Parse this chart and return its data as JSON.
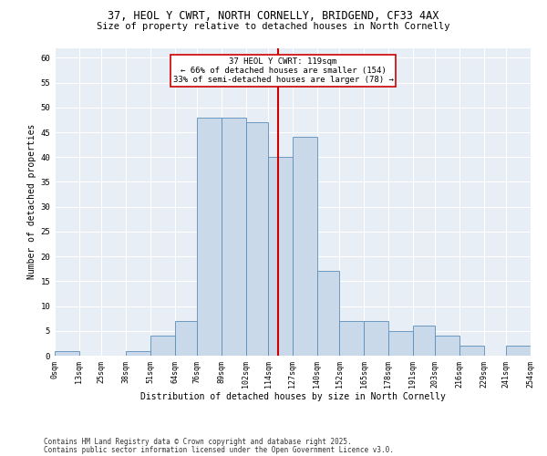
{
  "title1": "37, HEOL Y CWRT, NORTH CORNELLY, BRIDGEND, CF33 4AX",
  "title2": "Size of property relative to detached houses in North Cornelly",
  "xlabel": "Distribution of detached houses by size in North Cornelly",
  "ylabel": "Number of detached properties",
  "footnote1": "Contains HM Land Registry data © Crown copyright and database right 2025.",
  "footnote2": "Contains public sector information licensed under the Open Government Licence v3.0.",
  "property_size": 119,
  "property_label": "37 HEOL Y CWRT: 119sqm",
  "annotation_line1": "← 66% of detached houses are smaller (154)",
  "annotation_line2": "33% of semi-detached houses are larger (78) →",
  "bin_edges": [
    0,
    13,
    25,
    38,
    51,
    64,
    76,
    89,
    102,
    114,
    127,
    140,
    152,
    165,
    178,
    191,
    203,
    216,
    229,
    241,
    254
  ],
  "bar_heights": [
    1,
    0,
    0,
    1,
    4,
    7,
    48,
    48,
    47,
    40,
    44,
    17,
    7,
    7,
    5,
    6,
    4,
    2,
    0,
    2
  ],
  "bar_color": "#c9d9ea",
  "bar_edge_color": "#5b8db8",
  "vline_color": "#cc0000",
  "vline_x": 119,
  "annotation_box_color": "#cc0000",
  "background_color": "#e8eef5",
  "ylim": [
    0,
    62
  ],
  "yticks": [
    0,
    5,
    10,
    15,
    20,
    25,
    30,
    35,
    40,
    45,
    50,
    55,
    60
  ],
  "title1_fontsize": 8.5,
  "title2_fontsize": 7.5,
  "xlabel_fontsize": 7.0,
  "ylabel_fontsize": 7.0,
  "xtick_fontsize": 6.0,
  "ytick_fontsize": 6.5,
  "annotation_fontsize": 6.5,
  "footnote_fontsize": 5.5
}
